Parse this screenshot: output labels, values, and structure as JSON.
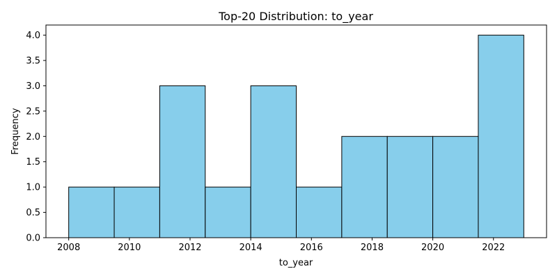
{
  "chart_data": {
    "type": "bar",
    "title": "Top-20 Distribution: to_year",
    "xlabel": "to_year",
    "ylabel": "Frequency",
    "bin_edges": [
      2008,
      2009.5,
      2011,
      2012.5,
      2014,
      2015.5,
      2017,
      2018.5,
      2020,
      2021.5,
      2023
    ],
    "values": [
      1,
      1,
      3,
      1,
      3,
      1,
      2,
      2,
      2,
      4
    ],
    "xlim": [
      2007.25,
      2023.75
    ],
    "ylim": [
      0,
      4.2
    ],
    "x_ticks": [
      2008,
      2010,
      2012,
      2014,
      2016,
      2018,
      2020,
      2022
    ],
    "x_tick_labels": [
      "2008",
      "2010",
      "2012",
      "2014",
      "2016",
      "2018",
      "2020",
      "2022"
    ],
    "y_ticks": [
      0,
      0.5,
      1,
      1.5,
      2,
      2.5,
      3,
      3.5,
      4
    ],
    "y_tick_labels": [
      "0.0",
      "0.5",
      "1.0",
      "1.5",
      "2.0",
      "2.5",
      "3.0",
      "3.5",
      "4.0"
    ],
    "bar_color": "#87ceeb",
    "edge_color": "#000000",
    "grid": false,
    "legend": "none"
  }
}
